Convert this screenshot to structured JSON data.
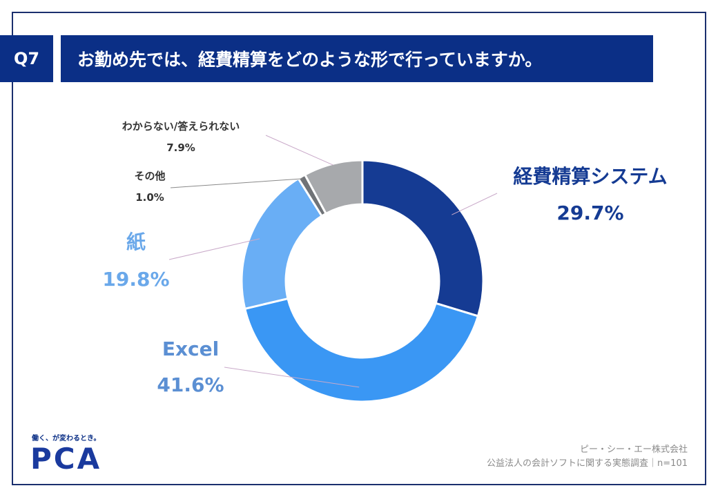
{
  "header": {
    "badge": "Q7",
    "question": "お勤め先では、経費精算をどのような形で行っていますか。"
  },
  "chart_data": {
    "type": "pie",
    "donut": true,
    "title": "",
    "slices": [
      {
        "name": "経費精算システム",
        "value": 29.7,
        "value_label": "29.7%",
        "color": "#153b93"
      },
      {
        "name": "Excel",
        "value": 41.6,
        "value_label": "41.6%",
        "color": "#3a97f4"
      },
      {
        "name": "紙",
        "value": 19.8,
        "value_label": "19.8%",
        "color": "#69aef5"
      },
      {
        "name": "その他",
        "value": 1.0,
        "value_label": "1.0%",
        "color": "#707377"
      },
      {
        "name": "わからない/答えられない",
        "value": 7.9,
        "value_label": "7.9%",
        "color": "#a7a9ac"
      }
    ],
    "label_colors": {
      "経費精算システム": "#153b93",
      "Excel": "#5b8fd3",
      "紙": "#6aa8ea",
      "その他": "#333333",
      "わからない/答えられない": "#333333"
    }
  },
  "footer": {
    "tagline": "働く、が変わるとき。",
    "logo": "PCA",
    "company": "ピー・シー・エー株式会社",
    "survey": "公益法人の会計ソフトに関する実態調査｜n=101"
  }
}
